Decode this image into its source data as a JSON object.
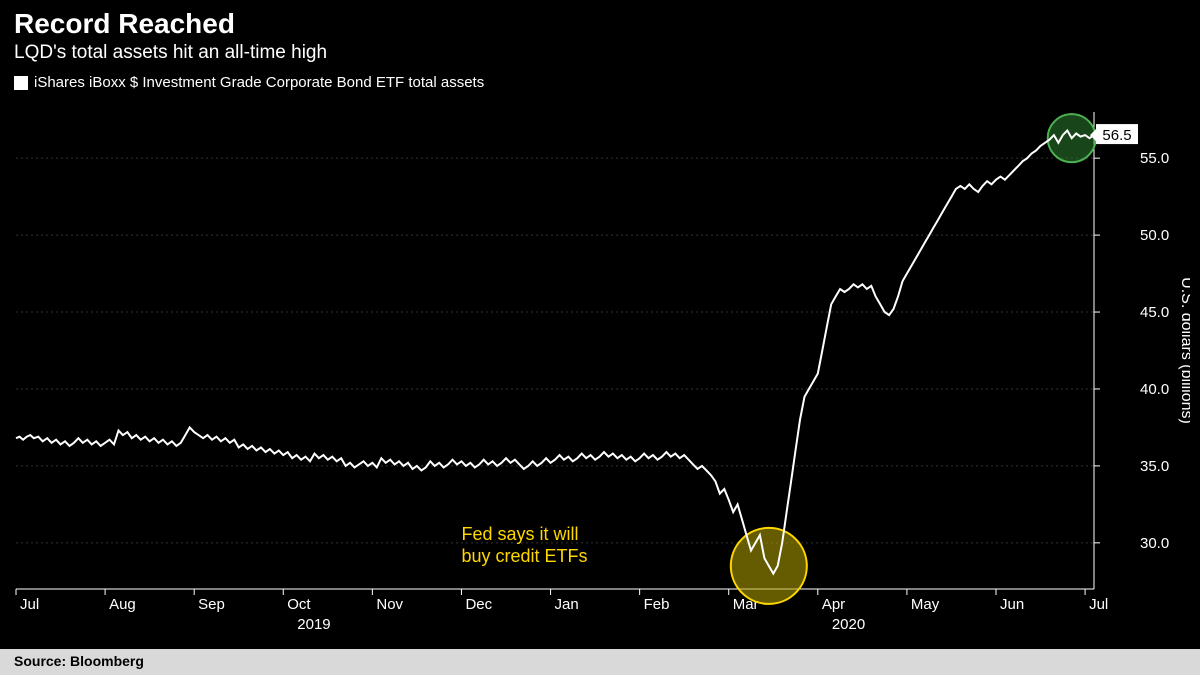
{
  "header": {
    "title": "Record Reached",
    "subtitle": "LQD's total assets hit an all-time high"
  },
  "legend": {
    "label": "iShares iBoxx $ Investment Grade Corporate Bond ETF total assets"
  },
  "footer": {
    "source": "Source: Bloomberg"
  },
  "chart": {
    "type": "line",
    "background_color": "#000000",
    "line_color": "#ffffff",
    "line_width": 2,
    "grid_color": "#333333",
    "axis_color": "#ffffff",
    "text_color": "#ffffff",
    "annotation_color": "#ffd700",
    "highlight_yellow": {
      "fill": "#b8a600",
      "stroke": "#ffd700",
      "opacity": 0.55,
      "radius": 38
    },
    "highlight_green": {
      "fill": "#2e7d32",
      "stroke": "#4caf50",
      "opacity": 0.55,
      "radius": 24
    },
    "y_axis": {
      "title": "U.S. dollars (billions)",
      "ticks": [
        30.0,
        35.0,
        40.0,
        45.0,
        50.0,
        55.0
      ],
      "min": 27.0,
      "max": 58.0
    },
    "x_axis": {
      "months": [
        "Jul",
        "Aug",
        "Sep",
        "Oct",
        "Nov",
        "Dec",
        "Jan",
        "Feb",
        "Mar",
        "Apr",
        "May",
        "Jun",
        "Jul"
      ],
      "year_labels": [
        {
          "label": "2019",
          "at_month_index": 3
        },
        {
          "label": "2020",
          "at_month_index": 9
        }
      ]
    },
    "current_value": "56.5",
    "annotation": {
      "line1": "Fed says it will",
      "line2": "buy credit ETFs"
    },
    "series": [
      {
        "x": 0.0,
        "y": 36.8
      },
      {
        "x": 0.04,
        "y": 36.9
      },
      {
        "x": 0.08,
        "y": 36.7
      },
      {
        "x": 0.12,
        "y": 36.9
      },
      {
        "x": 0.16,
        "y": 37.0
      },
      {
        "x": 0.2,
        "y": 36.8
      },
      {
        "x": 0.25,
        "y": 36.9
      },
      {
        "x": 0.3,
        "y": 36.6
      },
      {
        "x": 0.35,
        "y": 36.8
      },
      {
        "x": 0.4,
        "y": 36.5
      },
      {
        "x": 0.45,
        "y": 36.7
      },
      {
        "x": 0.5,
        "y": 36.4
      },
      {
        "x": 0.55,
        "y": 36.6
      },
      {
        "x": 0.6,
        "y": 36.3
      },
      {
        "x": 0.65,
        "y": 36.5
      },
      {
        "x": 0.7,
        "y": 36.8
      },
      {
        "x": 0.75,
        "y": 36.5
      },
      {
        "x": 0.8,
        "y": 36.7
      },
      {
        "x": 0.85,
        "y": 36.4
      },
      {
        "x": 0.9,
        "y": 36.6
      },
      {
        "x": 0.95,
        "y": 36.3
      },
      {
        "x": 1.0,
        "y": 36.5
      },
      {
        "x": 1.05,
        "y": 36.7
      },
      {
        "x": 1.1,
        "y": 36.4
      },
      {
        "x": 1.15,
        "y": 37.3
      },
      {
        "x": 1.2,
        "y": 37.0
      },
      {
        "x": 1.25,
        "y": 37.2
      },
      {
        "x": 1.3,
        "y": 36.8
      },
      {
        "x": 1.35,
        "y": 37.0
      },
      {
        "x": 1.4,
        "y": 36.7
      },
      {
        "x": 1.45,
        "y": 36.9
      },
      {
        "x": 1.5,
        "y": 36.6
      },
      {
        "x": 1.55,
        "y": 36.8
      },
      {
        "x": 1.6,
        "y": 36.5
      },
      {
        "x": 1.65,
        "y": 36.7
      },
      {
        "x": 1.7,
        "y": 36.4
      },
      {
        "x": 1.75,
        "y": 36.6
      },
      {
        "x": 1.8,
        "y": 36.3
      },
      {
        "x": 1.85,
        "y": 36.5
      },
      {
        "x": 1.9,
        "y": 37.0
      },
      {
        "x": 1.95,
        "y": 37.5
      },
      {
        "x": 2.0,
        "y": 37.2
      },
      {
        "x": 2.05,
        "y": 37.0
      },
      {
        "x": 2.1,
        "y": 36.8
      },
      {
        "x": 2.15,
        "y": 37.0
      },
      {
        "x": 2.2,
        "y": 36.7
      },
      {
        "x": 2.25,
        "y": 36.9
      },
      {
        "x": 2.3,
        "y": 36.6
      },
      {
        "x": 2.35,
        "y": 36.8
      },
      {
        "x": 2.4,
        "y": 36.5
      },
      {
        "x": 2.45,
        "y": 36.7
      },
      {
        "x": 2.5,
        "y": 36.2
      },
      {
        "x": 2.55,
        "y": 36.4
      },
      {
        "x": 2.6,
        "y": 36.1
      },
      {
        "x": 2.65,
        "y": 36.3
      },
      {
        "x": 2.7,
        "y": 36.0
      },
      {
        "x": 2.75,
        "y": 36.2
      },
      {
        "x": 2.8,
        "y": 35.9
      },
      {
        "x": 2.85,
        "y": 36.1
      },
      {
        "x": 2.9,
        "y": 35.8
      },
      {
        "x": 2.95,
        "y": 36.0
      },
      {
        "x": 3.0,
        "y": 35.7
      },
      {
        "x": 3.05,
        "y": 35.9
      },
      {
        "x": 3.1,
        "y": 35.5
      },
      {
        "x": 3.15,
        "y": 35.7
      },
      {
        "x": 3.2,
        "y": 35.4
      },
      {
        "x": 3.25,
        "y": 35.6
      },
      {
        "x": 3.3,
        "y": 35.3
      },
      {
        "x": 3.35,
        "y": 35.8
      },
      {
        "x": 3.4,
        "y": 35.5
      },
      {
        "x": 3.45,
        "y": 35.7
      },
      {
        "x": 3.5,
        "y": 35.4
      },
      {
        "x": 3.55,
        "y": 35.6
      },
      {
        "x": 3.6,
        "y": 35.3
      },
      {
        "x": 3.65,
        "y": 35.5
      },
      {
        "x": 3.7,
        "y": 35.0
      },
      {
        "x": 3.75,
        "y": 35.2
      },
      {
        "x": 3.8,
        "y": 34.9
      },
      {
        "x": 3.85,
        "y": 35.1
      },
      {
        "x": 3.9,
        "y": 35.3
      },
      {
        "x": 3.95,
        "y": 35.0
      },
      {
        "x": 4.0,
        "y": 35.2
      },
      {
        "x": 4.05,
        "y": 34.9
      },
      {
        "x": 4.1,
        "y": 35.5
      },
      {
        "x": 4.15,
        "y": 35.2
      },
      {
        "x": 4.2,
        "y": 35.4
      },
      {
        "x": 4.25,
        "y": 35.1
      },
      {
        "x": 4.3,
        "y": 35.3
      },
      {
        "x": 4.35,
        "y": 35.0
      },
      {
        "x": 4.4,
        "y": 35.2
      },
      {
        "x": 4.45,
        "y": 34.8
      },
      {
        "x": 4.5,
        "y": 35.0
      },
      {
        "x": 4.55,
        "y": 34.7
      },
      {
        "x": 4.6,
        "y": 34.9
      },
      {
        "x": 4.65,
        "y": 35.3
      },
      {
        "x": 4.7,
        "y": 35.0
      },
      {
        "x": 4.75,
        "y": 35.2
      },
      {
        "x": 4.8,
        "y": 34.9
      },
      {
        "x": 4.85,
        "y": 35.1
      },
      {
        "x": 4.9,
        "y": 35.4
      },
      {
        "x": 4.95,
        "y": 35.1
      },
      {
        "x": 5.0,
        "y": 35.3
      },
      {
        "x": 5.05,
        "y": 35.0
      },
      {
        "x": 5.1,
        "y": 35.2
      },
      {
        "x": 5.15,
        "y": 34.9
      },
      {
        "x": 5.2,
        "y": 35.1
      },
      {
        "x": 5.25,
        "y": 35.4
      },
      {
        "x": 5.3,
        "y": 35.1
      },
      {
        "x": 5.35,
        "y": 35.3
      },
      {
        "x": 5.4,
        "y": 35.0
      },
      {
        "x": 5.45,
        "y": 35.2
      },
      {
        "x": 5.5,
        "y": 35.5
      },
      {
        "x": 5.55,
        "y": 35.2
      },
      {
        "x": 5.6,
        "y": 35.4
      },
      {
        "x": 5.65,
        "y": 35.1
      },
      {
        "x": 5.7,
        "y": 34.8
      },
      {
        "x": 5.75,
        "y": 35.0
      },
      {
        "x": 5.8,
        "y": 35.3
      },
      {
        "x": 5.85,
        "y": 35.0
      },
      {
        "x": 5.9,
        "y": 35.2
      },
      {
        "x": 5.95,
        "y": 35.5
      },
      {
        "x": 6.0,
        "y": 35.2
      },
      {
        "x": 6.05,
        "y": 35.4
      },
      {
        "x": 6.1,
        "y": 35.7
      },
      {
        "x": 6.15,
        "y": 35.4
      },
      {
        "x": 6.2,
        "y": 35.6
      },
      {
        "x": 6.25,
        "y": 35.3
      },
      {
        "x": 6.3,
        "y": 35.5
      },
      {
        "x": 6.35,
        "y": 35.8
      },
      {
        "x": 6.4,
        "y": 35.5
      },
      {
        "x": 6.45,
        "y": 35.7
      },
      {
        "x": 6.5,
        "y": 35.4
      },
      {
        "x": 6.55,
        "y": 35.6
      },
      {
        "x": 6.6,
        "y": 35.9
      },
      {
        "x": 6.65,
        "y": 35.6
      },
      {
        "x": 6.7,
        "y": 35.8
      },
      {
        "x": 6.75,
        "y": 35.5
      },
      {
        "x": 6.8,
        "y": 35.7
      },
      {
        "x": 6.85,
        "y": 35.4
      },
      {
        "x": 6.9,
        "y": 35.6
      },
      {
        "x": 6.95,
        "y": 35.3
      },
      {
        "x": 7.0,
        "y": 35.5
      },
      {
        "x": 7.05,
        "y": 35.8
      },
      {
        "x": 7.1,
        "y": 35.5
      },
      {
        "x": 7.15,
        "y": 35.7
      },
      {
        "x": 7.2,
        "y": 35.4
      },
      {
        "x": 7.25,
        "y": 35.6
      },
      {
        "x": 7.3,
        "y": 35.9
      },
      {
        "x": 7.35,
        "y": 35.6
      },
      {
        "x": 7.4,
        "y": 35.8
      },
      {
        "x": 7.45,
        "y": 35.5
      },
      {
        "x": 7.5,
        "y": 35.7
      },
      {
        "x": 7.55,
        "y": 35.4
      },
      {
        "x": 7.6,
        "y": 35.1
      },
      {
        "x": 7.65,
        "y": 34.8
      },
      {
        "x": 7.7,
        "y": 35.0
      },
      {
        "x": 7.75,
        "y": 34.7
      },
      {
        "x": 7.8,
        "y": 34.4
      },
      {
        "x": 7.85,
        "y": 34.0
      },
      {
        "x": 7.9,
        "y": 33.2
      },
      {
        "x": 7.95,
        "y": 33.5
      },
      {
        "x": 8.0,
        "y": 32.8
      },
      {
        "x": 8.05,
        "y": 32.0
      },
      {
        "x": 8.1,
        "y": 32.5
      },
      {
        "x": 8.15,
        "y": 31.5
      },
      {
        "x": 8.2,
        "y": 30.5
      },
      {
        "x": 8.25,
        "y": 29.5
      },
      {
        "x": 8.3,
        "y": 30.0
      },
      {
        "x": 8.35,
        "y": 30.5
      },
      {
        "x": 8.4,
        "y": 29.0
      },
      {
        "x": 8.45,
        "y": 28.5
      },
      {
        "x": 8.5,
        "y": 28.0
      },
      {
        "x": 8.55,
        "y": 28.5
      },
      {
        "x": 8.6,
        "y": 30.0
      },
      {
        "x": 8.65,
        "y": 32.0
      },
      {
        "x": 8.7,
        "y": 34.0
      },
      {
        "x": 8.75,
        "y": 36.0
      },
      {
        "x": 8.8,
        "y": 38.0
      },
      {
        "x": 8.85,
        "y": 39.5
      },
      {
        "x": 8.9,
        "y": 40.0
      },
      {
        "x": 8.95,
        "y": 40.5
      },
      {
        "x": 9.0,
        "y": 41.0
      },
      {
        "x": 9.05,
        "y": 42.5
      },
      {
        "x": 9.1,
        "y": 44.0
      },
      {
        "x": 9.15,
        "y": 45.5
      },
      {
        "x": 9.2,
        "y": 46.0
      },
      {
        "x": 9.25,
        "y": 46.5
      },
      {
        "x": 9.3,
        "y": 46.3
      },
      {
        "x": 9.35,
        "y": 46.5
      },
      {
        "x": 9.4,
        "y": 46.8
      },
      {
        "x": 9.45,
        "y": 46.6
      },
      {
        "x": 9.5,
        "y": 46.8
      },
      {
        "x": 9.55,
        "y": 46.5
      },
      {
        "x": 9.6,
        "y": 46.7
      },
      {
        "x": 9.65,
        "y": 46.0
      },
      {
        "x": 9.7,
        "y": 45.5
      },
      {
        "x": 9.75,
        "y": 45.0
      },
      {
        "x": 9.8,
        "y": 44.8
      },
      {
        "x": 9.85,
        "y": 45.2
      },
      {
        "x": 9.9,
        "y": 46.0
      },
      {
        "x": 9.95,
        "y": 47.0
      },
      {
        "x": 10.0,
        "y": 47.5
      },
      {
        "x": 10.05,
        "y": 48.0
      },
      {
        "x": 10.1,
        "y": 48.5
      },
      {
        "x": 10.15,
        "y": 49.0
      },
      {
        "x": 10.2,
        "y": 49.5
      },
      {
        "x": 10.25,
        "y": 50.0
      },
      {
        "x": 10.3,
        "y": 50.5
      },
      {
        "x": 10.35,
        "y": 51.0
      },
      {
        "x": 10.4,
        "y": 51.5
      },
      {
        "x": 10.45,
        "y": 52.0
      },
      {
        "x": 10.5,
        "y": 52.5
      },
      {
        "x": 10.55,
        "y": 53.0
      },
      {
        "x": 10.6,
        "y": 53.2
      },
      {
        "x": 10.65,
        "y": 53.0
      },
      {
        "x": 10.7,
        "y": 53.3
      },
      {
        "x": 10.75,
        "y": 53.0
      },
      {
        "x": 10.8,
        "y": 52.8
      },
      {
        "x": 10.85,
        "y": 53.2
      },
      {
        "x": 10.9,
        "y": 53.5
      },
      {
        "x": 10.95,
        "y": 53.3
      },
      {
        "x": 11.0,
        "y": 53.6
      },
      {
        "x": 11.05,
        "y": 53.8
      },
      {
        "x": 11.1,
        "y": 53.6
      },
      {
        "x": 11.15,
        "y": 53.9
      },
      {
        "x": 11.2,
        "y": 54.2
      },
      {
        "x": 11.25,
        "y": 54.5
      },
      {
        "x": 11.3,
        "y": 54.8
      },
      {
        "x": 11.35,
        "y": 55.0
      },
      {
        "x": 11.4,
        "y": 55.3
      },
      {
        "x": 11.45,
        "y": 55.5
      },
      {
        "x": 11.5,
        "y": 55.8
      },
      {
        "x": 11.55,
        "y": 56.0
      },
      {
        "x": 11.6,
        "y": 56.2
      },
      {
        "x": 11.65,
        "y": 56.5
      },
      {
        "x": 11.7,
        "y": 56.0
      },
      {
        "x": 11.75,
        "y": 56.5
      },
      {
        "x": 11.8,
        "y": 56.8
      },
      {
        "x": 11.85,
        "y": 56.3
      },
      {
        "x": 11.9,
        "y": 56.6
      },
      {
        "x": 11.95,
        "y": 56.4
      },
      {
        "x": 12.0,
        "y": 56.5
      },
      {
        "x": 12.05,
        "y": 56.3
      },
      {
        "x": 12.1,
        "y": 56.5
      }
    ],
    "highlight_yellow_at_x": 8.45,
    "highlight_green_at_x": 11.85
  }
}
